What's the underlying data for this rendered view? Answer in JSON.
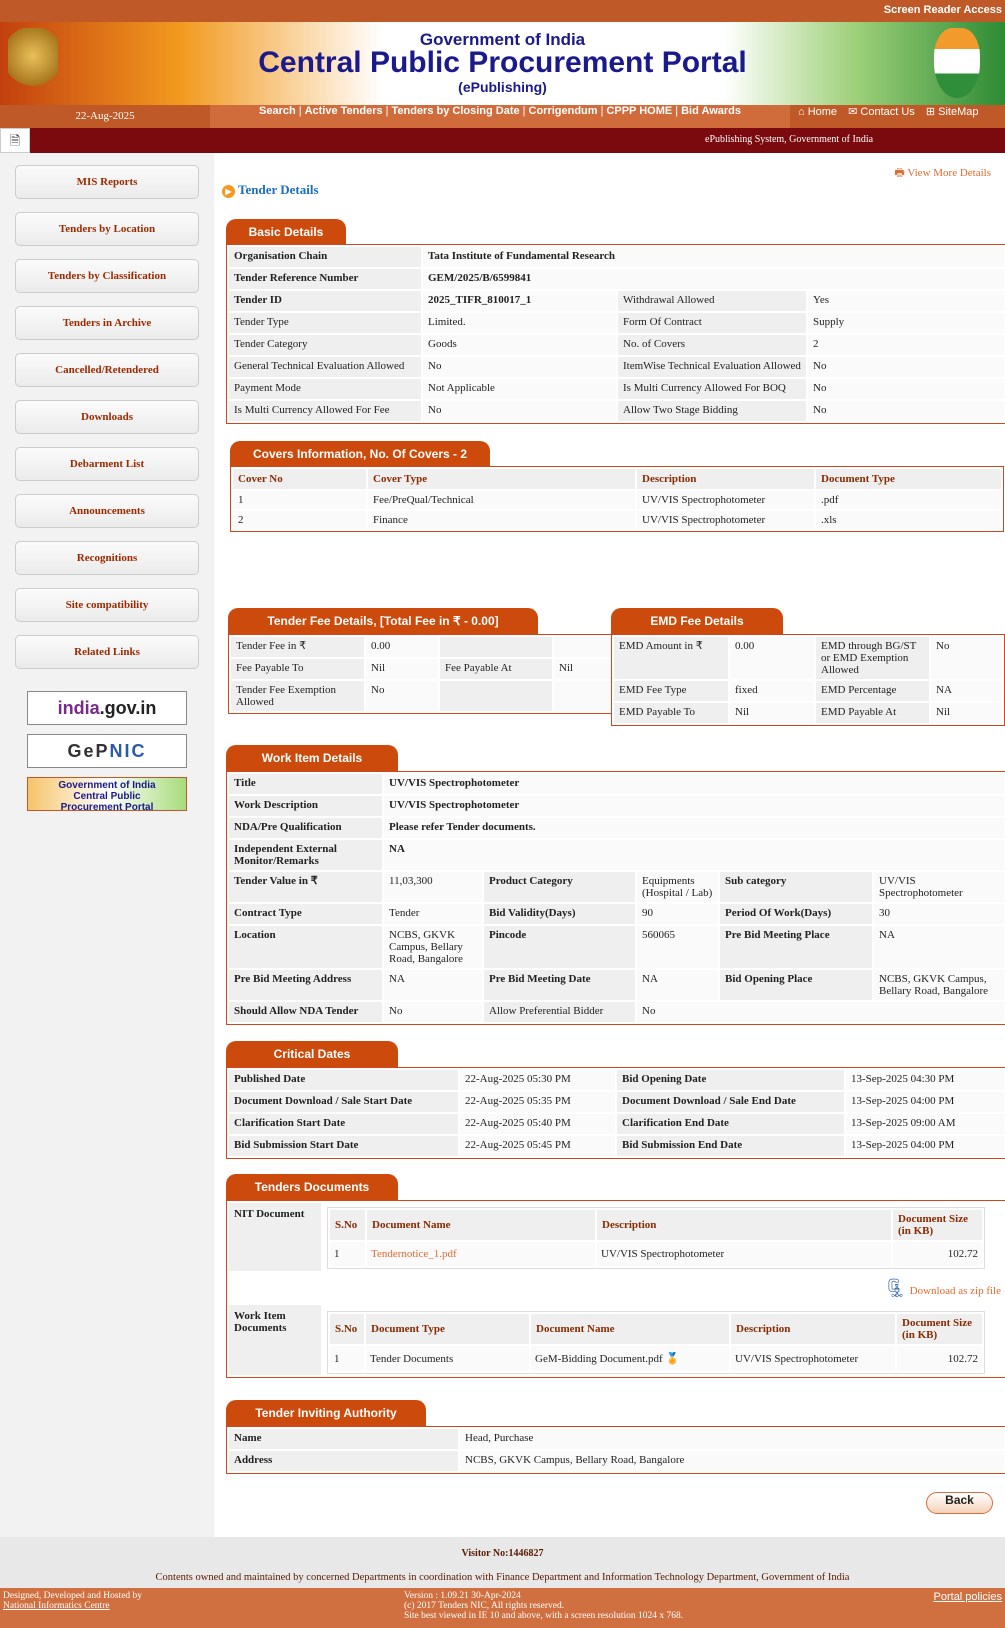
{
  "header": {
    "screen_reader": "Screen Reader Access",
    "gov": "Government of India",
    "portal": "Central Public Procurement Portal",
    "sub": "(ePublishing)",
    "date": "22-Aug-2025",
    "nav_links": [
      "Search",
      "Active Tenders",
      "Tenders by Closing Date",
      "Corrigendum",
      "CPPP HOME",
      "Bid Awards"
    ],
    "right_links": [
      "Home",
      "Contact Us",
      "SiteMap"
    ],
    "system_text": "ePublishing System, Government of India"
  },
  "sidebar": {
    "items": [
      "MIS Reports",
      "Tenders by Location",
      "Tenders by Classification",
      "Tenders in Archive",
      "Cancelled/Retendered",
      "Downloads",
      "Debarment List",
      "Announcements",
      "Recognitions",
      "Site compatibility",
      "Related Links"
    ],
    "logos": [
      "india.gov.in",
      "GePNIC",
      "Central Public Procurement Portal"
    ]
  },
  "page": {
    "title": "Tender Details",
    "view_more": "View More Details",
    "back": "Back"
  },
  "basic": {
    "title": "Basic Details",
    "rows": [
      [
        "Organisation Chain",
        "Tata Institute of Fundamental Research"
      ],
      [
        "Tender Reference Number",
        "GEM/2025/B/6599841"
      ],
      [
        "Tender ID",
        "2025_TIFR_810017_1",
        "Withdrawal Allowed",
        "Yes"
      ],
      [
        "Tender Type",
        "Limited.",
        "Form Of Contract",
        "Supply"
      ],
      [
        "Tender Category",
        "Goods",
        "No. of Covers",
        "2"
      ],
      [
        "General Technical Evaluation Allowed",
        "No",
        "ItemWise Technical Evaluation Allowed",
        "No"
      ],
      [
        "Payment Mode",
        "Not Applicable",
        "Is Multi Currency Allowed For BOQ",
        "No"
      ],
      [
        "Is Multi Currency Allowed For Fee",
        "No",
        "Allow Two Stage Bidding",
        "No"
      ]
    ]
  },
  "covers": {
    "title": "Covers Information, No. Of Covers - 2",
    "headers": [
      "Cover No",
      "Cover Type",
      "Description",
      "Document Type"
    ],
    "rows": [
      [
        "1",
        "Fee/PreQual/Technical",
        "UV/VIS Spectrophotometer",
        ".pdf"
      ],
      [
        "2",
        "Finance",
        "UV/VIS Spectrophotometer",
        ".xls"
      ]
    ]
  },
  "fee": {
    "title": "Tender Fee Details, [Total Fee in ₹   - 0.00]",
    "rows": [
      [
        "Tender Fee in ₹",
        "0.00",
        "",
        ""
      ],
      [
        "Fee Payable To",
        "Nil",
        "Fee Payable At",
        "Nil"
      ],
      [
        "Tender Fee Exemption Allowed",
        "No",
        "",
        ""
      ]
    ]
  },
  "emd": {
    "title": "EMD Fee Details",
    "rows": [
      [
        "EMD Amount in ₹",
        "0.00",
        "EMD through BG/ST or EMD Exemption Allowed",
        "No"
      ],
      [
        "EMD Fee Type",
        "fixed",
        "EMD Percentage",
        "NA"
      ],
      [
        "EMD Payable To",
        "Nil",
        "EMD Payable At",
        "Nil"
      ]
    ]
  },
  "work": {
    "title": "Work Item Details",
    "rows": [
      [
        "Title",
        "UV/VIS Spectrophotometer"
      ],
      [
        "Work Description",
        "UV/VIS Spectrophotometer"
      ],
      [
        "NDA/Pre Qualification",
        "Please refer Tender documents."
      ],
      [
        "Independent External Monitor/Remarks",
        "NA"
      ],
      [
        "Tender Value in ₹",
        "11,03,300",
        "Product Category",
        "Equipments (Hospital / Lab)",
        "Sub category",
        "UV/VIS Spectrophotometer"
      ],
      [
        "Contract Type",
        "Tender",
        "Bid Validity(Days)",
        "90",
        "Period Of Work(Days)",
        "30"
      ],
      [
        "Location",
        "NCBS, GKVK Campus, Bellary Road, Bangalore",
        "Pincode",
        "560065",
        "Pre Bid Meeting Place",
        "NA"
      ],
      [
        "Pre Bid Meeting Address",
        "NA",
        "Pre Bid Meeting Date",
        "NA",
        "Bid Opening Place",
        "NCBS, GKVK Campus, Bellary Road, Bangalore"
      ],
      [
        "Should Allow NDA Tender",
        "No",
        "Allow Preferential Bidder",
        "No"
      ]
    ]
  },
  "dates": {
    "title": "Critical Dates",
    "rows": [
      [
        "Published Date",
        "22-Aug-2025 05:30 PM",
        "Bid Opening Date",
        "13-Sep-2025 04:30 PM"
      ],
      [
        "Document Download / Sale Start Date",
        "22-Aug-2025 05:35 PM",
        "Document Download / Sale End Date",
        "13-Sep-2025 04:00 PM"
      ],
      [
        "Clarification Start Date",
        "22-Aug-2025 05:40 PM",
        "Clarification End Date",
        "13-Sep-2025 09:00 AM"
      ],
      [
        "Bid Submission Start Date",
        "22-Aug-2025 05:45 PM",
        "Bid Submission End Date",
        "13-Sep-2025 04:00 PM"
      ]
    ]
  },
  "docs": {
    "title": "Tenders Documents",
    "nit_label": "NIT Document",
    "nit_headers": [
      "S.No",
      "Document Name",
      "Description",
      "Document Size (in KB)"
    ],
    "nit_row": [
      "1",
      "Tendernotice_1.pdf",
      "UV/VIS Spectrophotometer",
      "102.72"
    ],
    "zip": "Download as zip file",
    "work_label": "Work Item Documents",
    "work_headers": [
      "S.No",
      "Document Type",
      "Document Name",
      "Description",
      "Document Size (in KB)"
    ],
    "work_row": [
      "1",
      "Tender Documents",
      "GeM-Bidding Document.pdf",
      "UV/VIS Spectrophotometer",
      "102.72"
    ]
  },
  "tia": {
    "title": "Tender Inviting Authority",
    "rows": [
      [
        "Name",
        "Head, Purchase"
      ],
      [
        "Address",
        "NCBS, GKVK Campus, Bellary Road, Bangalore"
      ]
    ]
  },
  "footer": {
    "visitor": "Visitor No:1446827",
    "contents": "Contents owned and maintained by concerned Departments in coordination with Finance Department and Information Technology Department, Government of India",
    "designed": "Designed, Developed and Hosted by",
    "nic": "National Informatics Centre",
    "version": "Version : 1.09.21 30-Apr-2024",
    "copyright": "(c) 2017 Tenders NIC, All rights reserved.",
    "best_viewed": "Site best viewed in IE 10 and above, with a screen resolution 1024 x 768.",
    "policies": "Portal policies"
  },
  "colors": {
    "accent": "#cc4b0c",
    "nav": "#bf5a28",
    "darkbar": "#7a0a0e"
  }
}
